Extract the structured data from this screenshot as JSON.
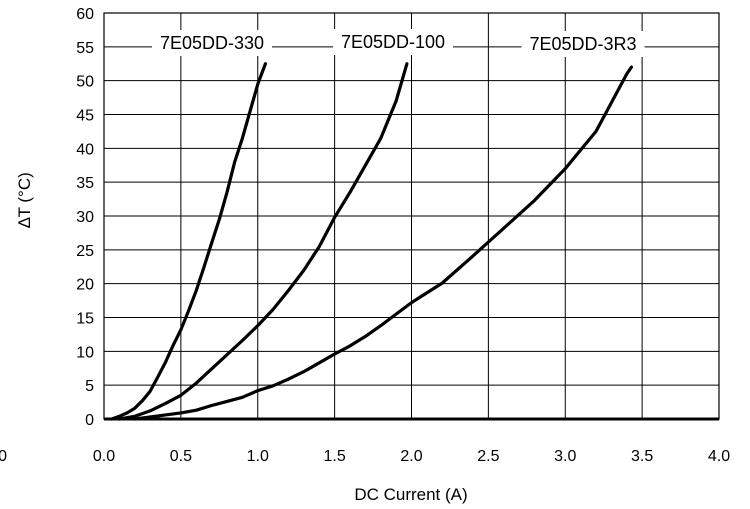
{
  "chart_data": {
    "type": "line",
    "title": "",
    "xlabel": "DC Current (A)",
    "ylabel": "∆T (°C)",
    "xlim": [
      0.0,
      4.0
    ],
    "ylim": [
      0,
      60
    ],
    "x_ticks": [
      "0.0",
      "0.5",
      "1.0",
      "1.5",
      "2.0",
      "2.5",
      "3.0",
      "3.5",
      "4.0"
    ],
    "x_ticks_values": [
      0.0,
      0.5,
      1.0,
      1.5,
      2.0,
      2.5,
      3.0,
      3.5,
      4.0
    ],
    "y_ticks": [
      "0",
      "5",
      "10",
      "15",
      "20",
      "25",
      "30",
      "35",
      "40",
      "45",
      "50",
      "55",
      "60"
    ],
    "y_ticks_values": [
      0,
      5,
      10,
      15,
      20,
      25,
      30,
      35,
      40,
      45,
      50,
      55,
      60
    ],
    "stray_label": "0",
    "grid": true,
    "line_color": "#000000",
    "series": [
      {
        "name": "7E05DD-330",
        "points": [
          [
            0.05,
            0
          ],
          [
            0.1,
            0.4
          ],
          [
            0.15,
            0.9
          ],
          [
            0.2,
            1.6
          ],
          [
            0.25,
            2.7
          ],
          [
            0.3,
            4.1
          ],
          [
            0.35,
            6.2
          ],
          [
            0.4,
            8.4
          ],
          [
            0.45,
            10.9
          ],
          [
            0.5,
            13.2
          ],
          [
            0.55,
            16.0
          ],
          [
            0.6,
            19.0
          ],
          [
            0.65,
            22.4
          ],
          [
            0.7,
            26.0
          ],
          [
            0.75,
            29.5
          ],
          [
            0.8,
            33.5
          ],
          [
            0.85,
            38.0
          ],
          [
            0.9,
            41.5
          ],
          [
            0.95,
            45.5
          ],
          [
            1.0,
            49.5
          ],
          [
            1.05,
            52.5
          ]
        ]
      },
      {
        "name": "7E05DD-100",
        "points": [
          [
            0.1,
            0
          ],
          [
            0.2,
            0.4
          ],
          [
            0.3,
            1.2
          ],
          [
            0.4,
            2.3
          ],
          [
            0.5,
            3.5
          ],
          [
            0.6,
            5.3
          ],
          [
            0.7,
            7.4
          ],
          [
            0.8,
            9.5
          ],
          [
            0.9,
            11.6
          ],
          [
            1.0,
            13.8
          ],
          [
            1.1,
            16.2
          ],
          [
            1.2,
            19.0
          ],
          [
            1.3,
            22.0
          ],
          [
            1.4,
            25.5
          ],
          [
            1.5,
            29.8
          ],
          [
            1.6,
            33.5
          ],
          [
            1.7,
            37.5
          ],
          [
            1.8,
            41.5
          ],
          [
            1.9,
            47.0
          ],
          [
            1.97,
            52.5
          ]
        ]
      },
      {
        "name": "7E05DD-3R3",
        "points": [
          [
            0.2,
            0
          ],
          [
            0.3,
            0.3
          ],
          [
            0.4,
            0.6
          ],
          [
            0.5,
            0.9
          ],
          [
            0.6,
            1.3
          ],
          [
            0.7,
            2.0
          ],
          [
            0.8,
            2.6
          ],
          [
            0.9,
            3.2
          ],
          [
            1.0,
            4.2
          ],
          [
            1.1,
            4.9
          ],
          [
            1.2,
            5.9
          ],
          [
            1.3,
            7.0
          ],
          [
            1.4,
            8.3
          ],
          [
            1.5,
            9.6
          ],
          [
            1.6,
            10.8
          ],
          [
            1.7,
            12.2
          ],
          [
            1.8,
            13.8
          ],
          [
            1.9,
            15.5
          ],
          [
            2.0,
            17.2
          ],
          [
            2.2,
            20.1
          ],
          [
            2.4,
            24.1
          ],
          [
            2.6,
            28.2
          ],
          [
            2.8,
            32.3
          ],
          [
            3.0,
            37.0
          ],
          [
            3.2,
            42.5
          ],
          [
            3.4,
            51.0
          ],
          [
            3.43,
            52.0
          ]
        ]
      }
    ]
  }
}
